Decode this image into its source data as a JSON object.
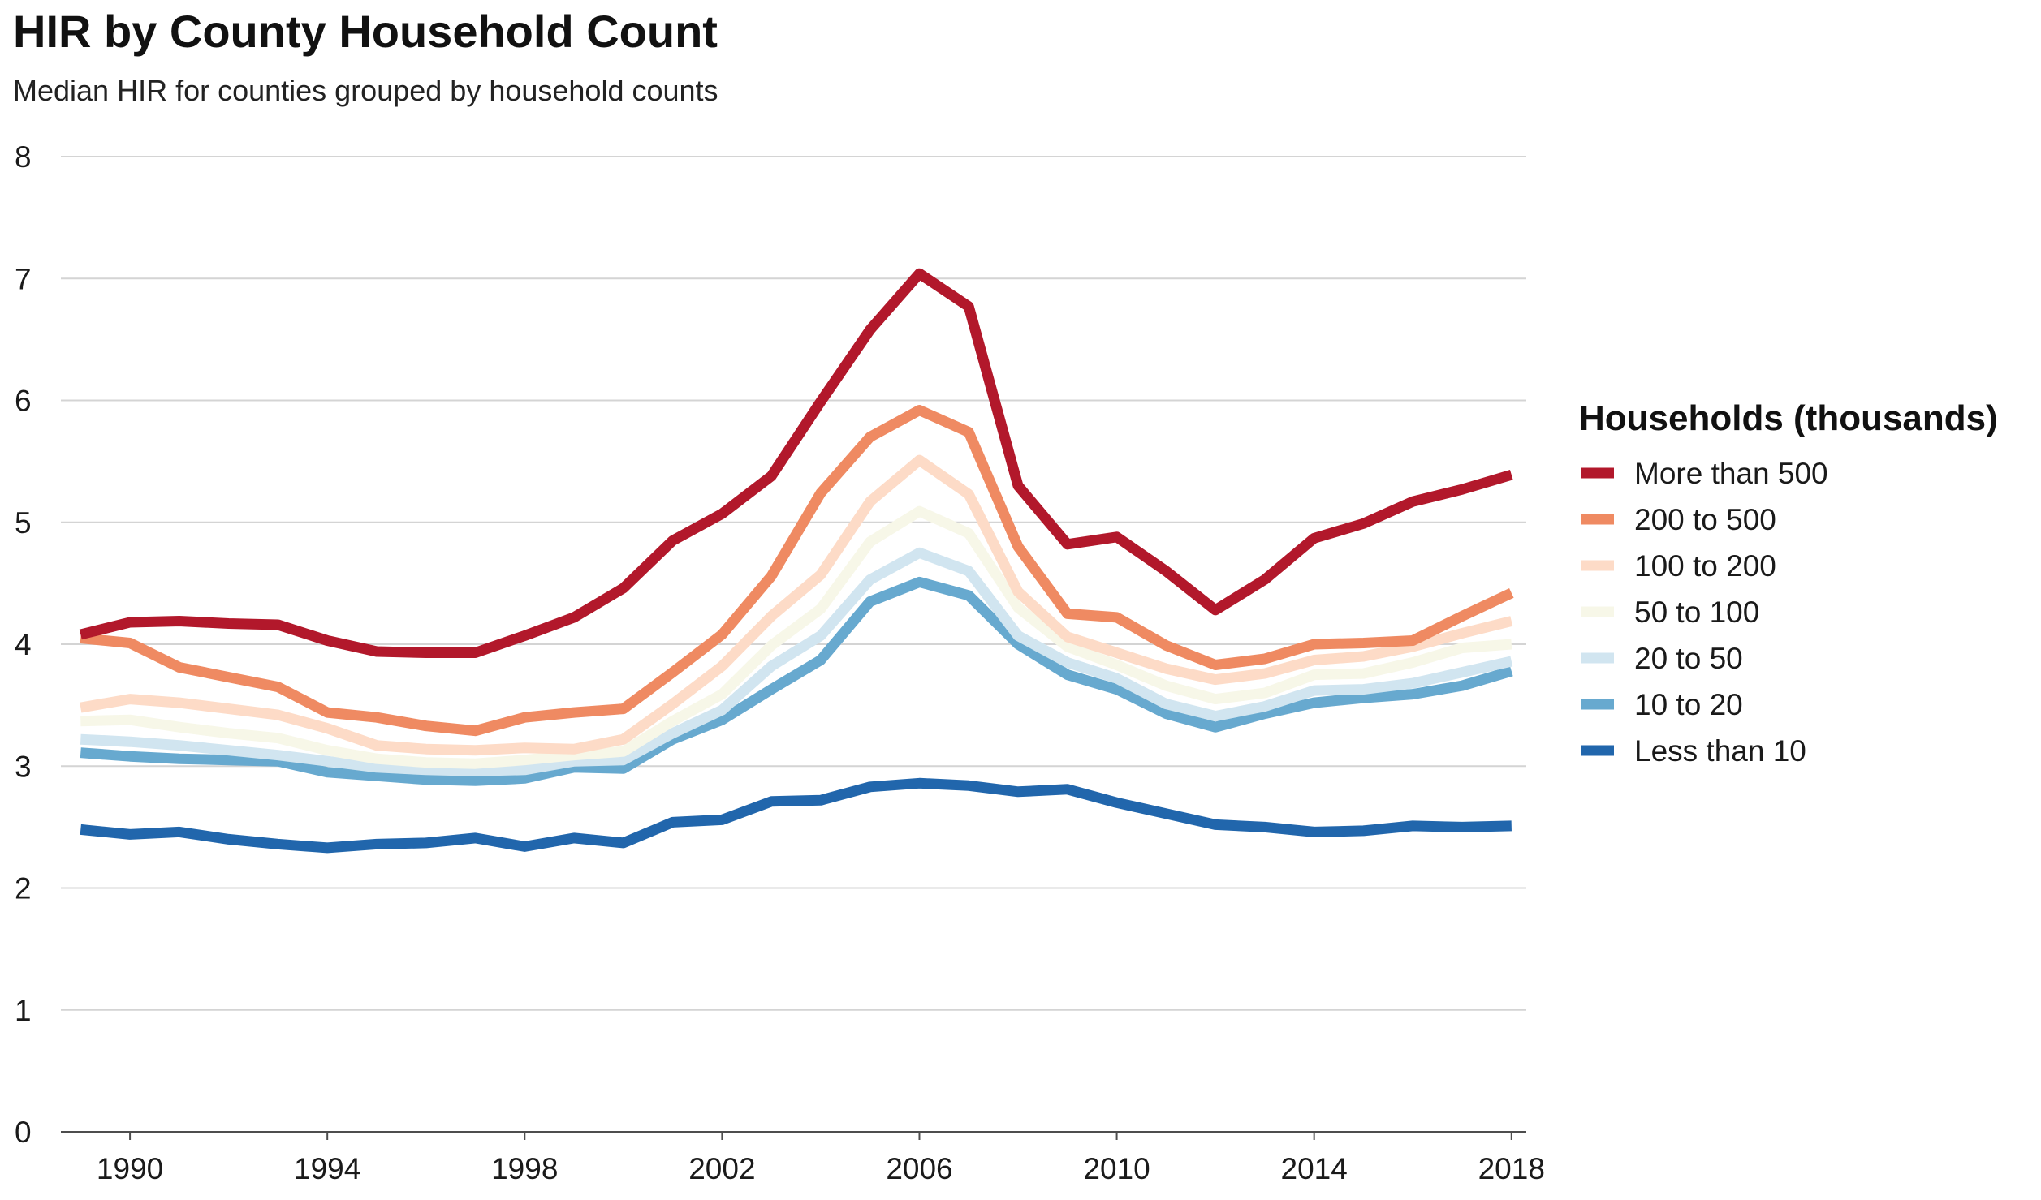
{
  "chart_data": {
    "type": "line",
    "title": "HIR by County Household Count",
    "subtitle": "Median HIR for counties grouped by household counts",
    "xlabel": "",
    "ylabel": "",
    "xlim": [
      1988.6,
      2018.3
    ],
    "ylim": [
      0,
      8
    ],
    "x_ticks": [
      "1990",
      "1994",
      "1998",
      "2002",
      "2006",
      "2010",
      "2014",
      "2018"
    ],
    "y_ticks": [
      "0",
      "1",
      "2",
      "3",
      "4",
      "5",
      "6",
      "7",
      "8"
    ],
    "grid": "horizontal",
    "legend_title": "Households (thousands)",
    "legend_position": "right",
    "x": [
      1989,
      1990,
      1991,
      1992,
      1993,
      1994,
      1995,
      1996,
      1997,
      1998,
      1999,
      2000,
      2001,
      2002,
      2003,
      2004,
      2005,
      2006,
      2007,
      2008,
      2009,
      2010,
      2011,
      2012,
      2013,
      2014,
      2015,
      2016,
      2017,
      2018
    ],
    "series": [
      {
        "name": "Less than 10",
        "color": "#2166ac",
        "values": [
          2.48,
          2.44,
          2.46,
          2.4,
          2.36,
          2.33,
          2.36,
          2.37,
          2.41,
          2.34,
          2.41,
          2.37,
          2.54,
          2.56,
          2.71,
          2.72,
          2.83,
          2.86,
          2.84,
          2.79,
          2.81,
          2.7,
          2.61,
          2.52,
          2.5,
          2.46,
          2.47,
          2.51,
          2.5,
          2.51
        ]
      },
      {
        "name": "10 to 20",
        "color": "#67a9cf",
        "values": [
          3.11,
          3.08,
          3.06,
          3.05,
          3.04,
          2.95,
          2.92,
          2.89,
          2.88,
          2.9,
          2.99,
          2.98,
          3.22,
          3.38,
          3.63,
          3.87,
          4.35,
          4.51,
          4.4,
          4.0,
          3.75,
          3.63,
          3.43,
          3.32,
          3.43,
          3.52,
          3.56,
          3.59,
          3.66,
          3.78
        ]
      },
      {
        "name": "20 to 50",
        "color": "#d1e5f0",
        "values": [
          3.22,
          3.2,
          3.17,
          3.13,
          3.09,
          3.04,
          2.99,
          2.97,
          2.96,
          2.97,
          3.04,
          3.05,
          3.27,
          3.46,
          3.82,
          4.07,
          4.53,
          4.75,
          4.6,
          4.07,
          3.85,
          3.72,
          3.51,
          3.41,
          3.49,
          3.62,
          3.63,
          3.68,
          3.77,
          3.86
        ]
      },
      {
        "name": "50 to 100",
        "color": "#f7f7e8",
        "values": [
          3.37,
          3.38,
          3.32,
          3.27,
          3.23,
          3.13,
          3.06,
          3.03,
          3.02,
          3.05,
          3.09,
          3.12,
          3.37,
          3.59,
          3.99,
          4.29,
          4.84,
          5.09,
          4.91,
          4.3,
          3.98,
          3.83,
          3.66,
          3.55,
          3.6,
          3.75,
          3.76,
          3.85,
          3.97,
          4.0
        ]
      },
      {
        "name": "100 to 200",
        "color": "#fddbc7",
        "values": [
          3.48,
          3.55,
          3.52,
          3.47,
          3.42,
          3.31,
          3.17,
          3.14,
          3.13,
          3.15,
          3.14,
          3.22,
          3.51,
          3.82,
          4.23,
          4.57,
          5.17,
          5.51,
          5.23,
          4.43,
          4.06,
          3.93,
          3.8,
          3.71,
          3.76,
          3.87,
          3.9,
          3.98,
          4.09,
          4.19
        ]
      },
      {
        "name": "200 to 500",
        "color": "#ef8a62",
        "values": [
          4.05,
          4.01,
          3.81,
          3.73,
          3.65,
          3.44,
          3.4,
          3.33,
          3.29,
          3.4,
          3.44,
          3.47,
          3.77,
          4.08,
          4.56,
          5.24,
          5.7,
          5.92,
          5.74,
          4.8,
          4.25,
          4.22,
          3.99,
          3.83,
          3.88,
          4.0,
          4.01,
          4.03,
          4.23,
          4.42
        ]
      },
      {
        "name": "More than 500",
        "color": "#b2182b",
        "values": [
          4.08,
          4.18,
          4.19,
          4.17,
          4.16,
          4.03,
          3.94,
          3.93,
          3.93,
          4.07,
          4.22,
          4.46,
          4.85,
          5.07,
          5.38,
          5.99,
          6.58,
          7.04,
          6.77,
          5.3,
          4.82,
          4.88,
          4.6,
          4.28,
          4.53,
          4.87,
          4.99,
          5.17,
          5.27,
          5.39
        ]
      }
    ],
    "legend_order": [
      "More than 500",
      "200 to 500",
      "100 to 200",
      "50 to 100",
      "20 to 50",
      "10 to 20",
      "Less than 10"
    ]
  }
}
